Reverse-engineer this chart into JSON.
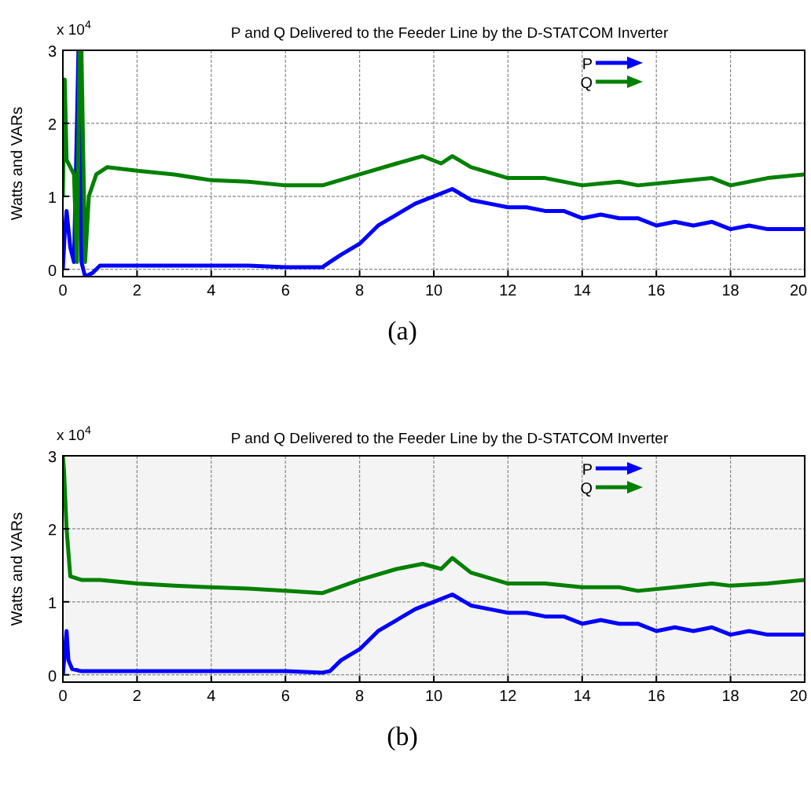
{
  "chart_data": [
    {
      "type": "line",
      "title": "P and Q Delivered to the Feeder Line by the D-STATCOM Inverter",
      "ylabel": "Watts and VARs",
      "annotations": [
        "x 10$^{4}$",
        "(a)"
      ],
      "xlim": [
        0,
        20
      ],
      "xticks": [
        0,
        2,
        4,
        6,
        8,
        10,
        12,
        14,
        16,
        18,
        20
      ],
      "ylim": [
        -0.1,
        3
      ],
      "yticks": [
        0,
        1,
        2,
        3
      ],
      "grid": true,
      "legend": "top right",
      "line_style": "solid",
      "series": [
        {
          "name": "P",
          "color": "#0000ff",
          "x": [
            0,
            0.05,
            0.1,
            0.2,
            0.3,
            0.38,
            0.42,
            0.46,
            0.5,
            0.6,
            0.8,
            1,
            1.5,
            2,
            3,
            4,
            5,
            6,
            7,
            7.2,
            7.5,
            8,
            8.5,
            9,
            9.5,
            10,
            10.5,
            11,
            11.5,
            12,
            12.5,
            13,
            13.5,
            14,
            14.5,
            15,
            15.5,
            16,
            16.5,
            17,
            17.5,
            18,
            18.5,
            19,
            19.5,
            20
          ],
          "values": [
            0,
            0.5,
            0.8,
            0.3,
            0.1,
            2.0,
            3,
            3,
            0.1,
            -0.1,
            -0.05,
            0.05,
            0.05,
            0.05,
            0.05,
            0.05,
            0.05,
            0.03,
            0.03,
            0.1,
            0.2,
            0.35,
            0.6,
            0.75,
            0.9,
            1.0,
            1.1,
            0.95,
            0.9,
            0.85,
            0.85,
            0.8,
            0.8,
            0.7,
            0.75,
            0.7,
            0.7,
            0.6,
            0.65,
            0.6,
            0.65,
            0.55,
            0.6,
            0.55,
            0.55,
            0.55
          ]
        },
        {
          "name": "Q",
          "color": "#008000",
          "x": [
            0,
            0.05,
            0.1,
            0.2,
            0.3,
            0.38,
            0.45,
            0.5,
            0.6,
            0.7,
            0.9,
            1.2,
            2,
            3,
            4,
            5,
            6,
            7,
            8,
            9,
            9.7,
            10.2,
            10.5,
            11,
            12,
            13,
            14,
            15,
            15.5,
            16.5,
            17.5,
            18,
            19,
            20
          ],
          "values": [
            1.0,
            2.6,
            1.5,
            1.4,
            1.3,
            0.1,
            3,
            3,
            0.1,
            1.0,
            1.3,
            1.4,
            1.35,
            1.3,
            1.22,
            1.2,
            1.15,
            1.15,
            1.3,
            1.45,
            1.55,
            1.45,
            1.55,
            1.4,
            1.25,
            1.25,
            1.15,
            1.2,
            1.15,
            1.2,
            1.25,
            1.15,
            1.25,
            1.3
          ]
        }
      ]
    },
    {
      "type": "line",
      "title": "P and Q Delivered to the Feeder Line by the D-STATCOM Inverter",
      "ylabel": "Watts and VARs",
      "annotations": [
        "x 10$^{4}$",
        "(b)"
      ],
      "xlim": [
        0,
        20
      ],
      "xticks": [
        0,
        2,
        4,
        6,
        8,
        10,
        12,
        14,
        16,
        18,
        20
      ],
      "ylim": [
        -0.1,
        3
      ],
      "yticks": [
        0,
        1,
        2,
        3
      ],
      "grid": true,
      "legend": "top right",
      "line_style": "solid",
      "series": [
        {
          "name": "P",
          "color": "#0000ff",
          "x": [
            0,
            0.05,
            0.1,
            0.15,
            0.25,
            0.5,
            1,
            2,
            3,
            4,
            5,
            6,
            7,
            7.2,
            7.5,
            8,
            8.5,
            9,
            9.5,
            10,
            10.5,
            11,
            11.5,
            12,
            12.5,
            13,
            13.5,
            14,
            14.5,
            15,
            15.5,
            16,
            16.5,
            17,
            17.5,
            18,
            18.5,
            19,
            19.5,
            20
          ],
          "values": [
            0,
            0.3,
            0.6,
            0.2,
            0.08,
            0.05,
            0.05,
            0.05,
            0.05,
            0.05,
            0.05,
            0.05,
            0.03,
            0.05,
            0.2,
            0.35,
            0.6,
            0.75,
            0.9,
            1.0,
            1.1,
            0.95,
            0.9,
            0.85,
            0.85,
            0.8,
            0.8,
            0.7,
            0.75,
            0.7,
            0.7,
            0.6,
            0.65,
            0.6,
            0.65,
            0.55,
            0.6,
            0.55,
            0.55,
            0.55
          ]
        },
        {
          "name": "Q",
          "color": "#008000",
          "x": [
            0,
            0.03,
            0.1,
            0.2,
            0.5,
            1,
            2,
            3,
            4,
            5,
            6,
            7,
            8,
            9,
            9.7,
            10.2,
            10.5,
            11,
            12,
            13,
            14,
            15,
            15.5,
            16.5,
            17.5,
            18,
            19,
            20
          ],
          "values": [
            3,
            2.8,
            2.0,
            1.35,
            1.3,
            1.3,
            1.25,
            1.22,
            1.2,
            1.18,
            1.15,
            1.12,
            1.3,
            1.45,
            1.52,
            1.45,
            1.6,
            1.4,
            1.25,
            1.25,
            1.2,
            1.2,
            1.15,
            1.2,
            1.25,
            1.22,
            1.25,
            1.3
          ]
        }
      ]
    }
  ]
}
